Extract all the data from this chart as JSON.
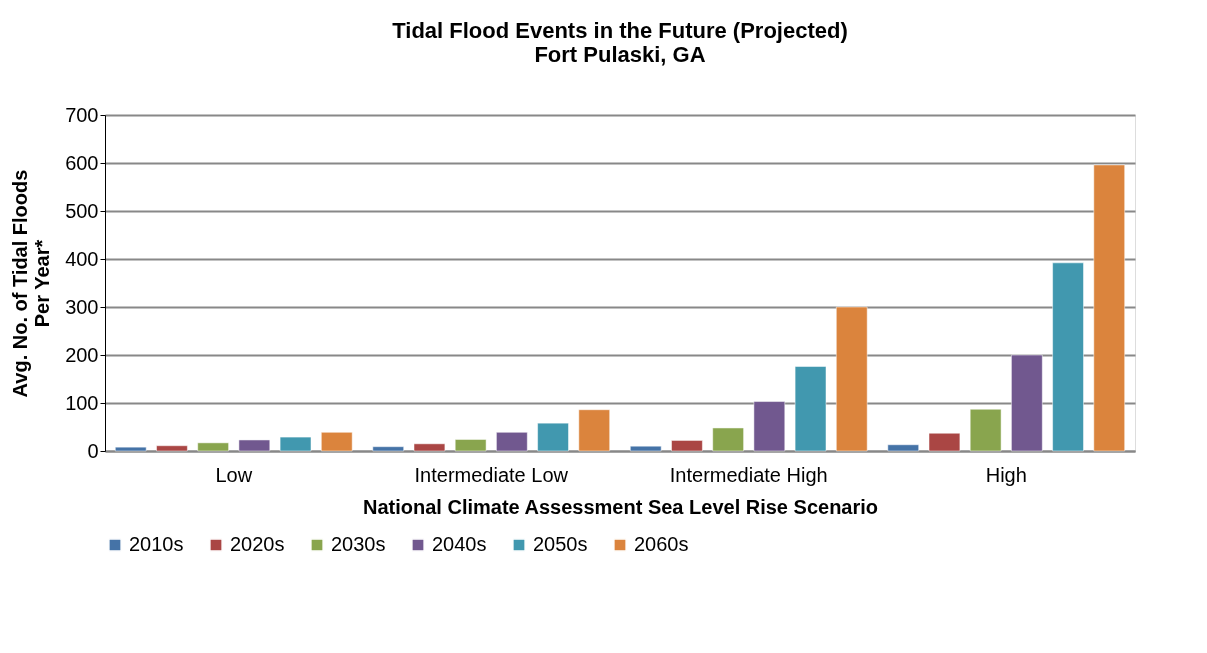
{
  "chart_data": {
    "type": "bar",
    "title": [
      "Tidal Flood Events in the Future (Projected)",
      "Fort Pulaski, GA"
    ],
    "xlabel": "National Climate Assessment Sea Level Rise Scenario",
    "ylabel": [
      "Avg. No. of Tidal Floods",
      "Per Year*"
    ],
    "categories": [
      "Low",
      "Intermediate Low",
      "Intermediate High",
      "High"
    ],
    "series": [
      {
        "name": "2010s",
        "color": "#4573a7",
        "values": [
          8,
          9,
          10,
          13
        ]
      },
      {
        "name": "2020s",
        "color": "#aa4644",
        "values": [
          11,
          15,
          22,
          37
        ]
      },
      {
        "name": "2030s",
        "color": "#89a54e",
        "values": [
          17,
          24,
          48,
          87
        ]
      },
      {
        "name": "2040s",
        "color": "#71588f",
        "values": [
          23,
          39,
          103,
          200
        ]
      },
      {
        "name": "2050s",
        "color": "#4198af",
        "values": [
          29,
          58,
          176,
          392
        ]
      },
      {
        "name": "2060s",
        "color": "#db843d",
        "values": [
          39,
          86,
          300,
          596
        ]
      }
    ],
    "ylim": [
      0,
      700
    ],
    "yticks": [
      0,
      100,
      200,
      300,
      400,
      500,
      600,
      700
    ],
    "grid": "y",
    "legend": "bottom"
  }
}
